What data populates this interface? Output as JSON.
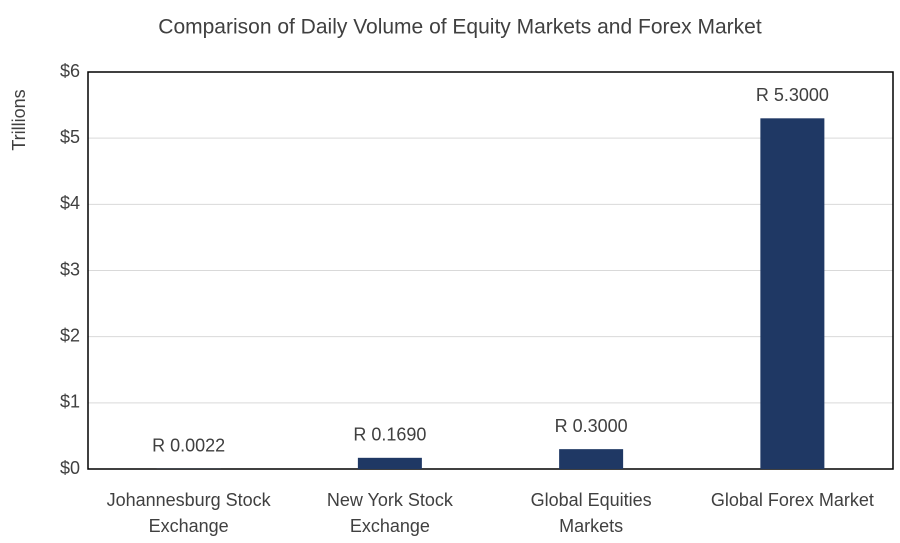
{
  "chart_data": {
    "type": "bar",
    "title": "Comparison of Daily Volume of Equity Markets and Forex Market",
    "y_label": "Trillions",
    "categories": [
      "Johannesburg Stock Exchange",
      "New York Stock Exchange",
      "Global Equities Markets",
      "Global Forex Market"
    ],
    "values": [
      0.0022,
      0.169,
      0.3,
      5.3
    ],
    "value_labels": [
      "R 0.0022",
      "R 0.1690",
      "R 0.3000",
      "R 5.3000"
    ],
    "color": "#1f3864",
    "ylim": [
      0,
      6
    ],
    "yticks": [
      {
        "value": 0,
        "label": "$0"
      },
      {
        "value": 1,
        "label": "$1"
      },
      {
        "value": 2,
        "label": "$2"
      },
      {
        "value": 3,
        "label": "$3"
      },
      {
        "value": 4,
        "label": "$4"
      },
      {
        "value": 5,
        "label": "$5"
      },
      {
        "value": 6,
        "label": "$6"
      }
    ],
    "grid": true
  }
}
